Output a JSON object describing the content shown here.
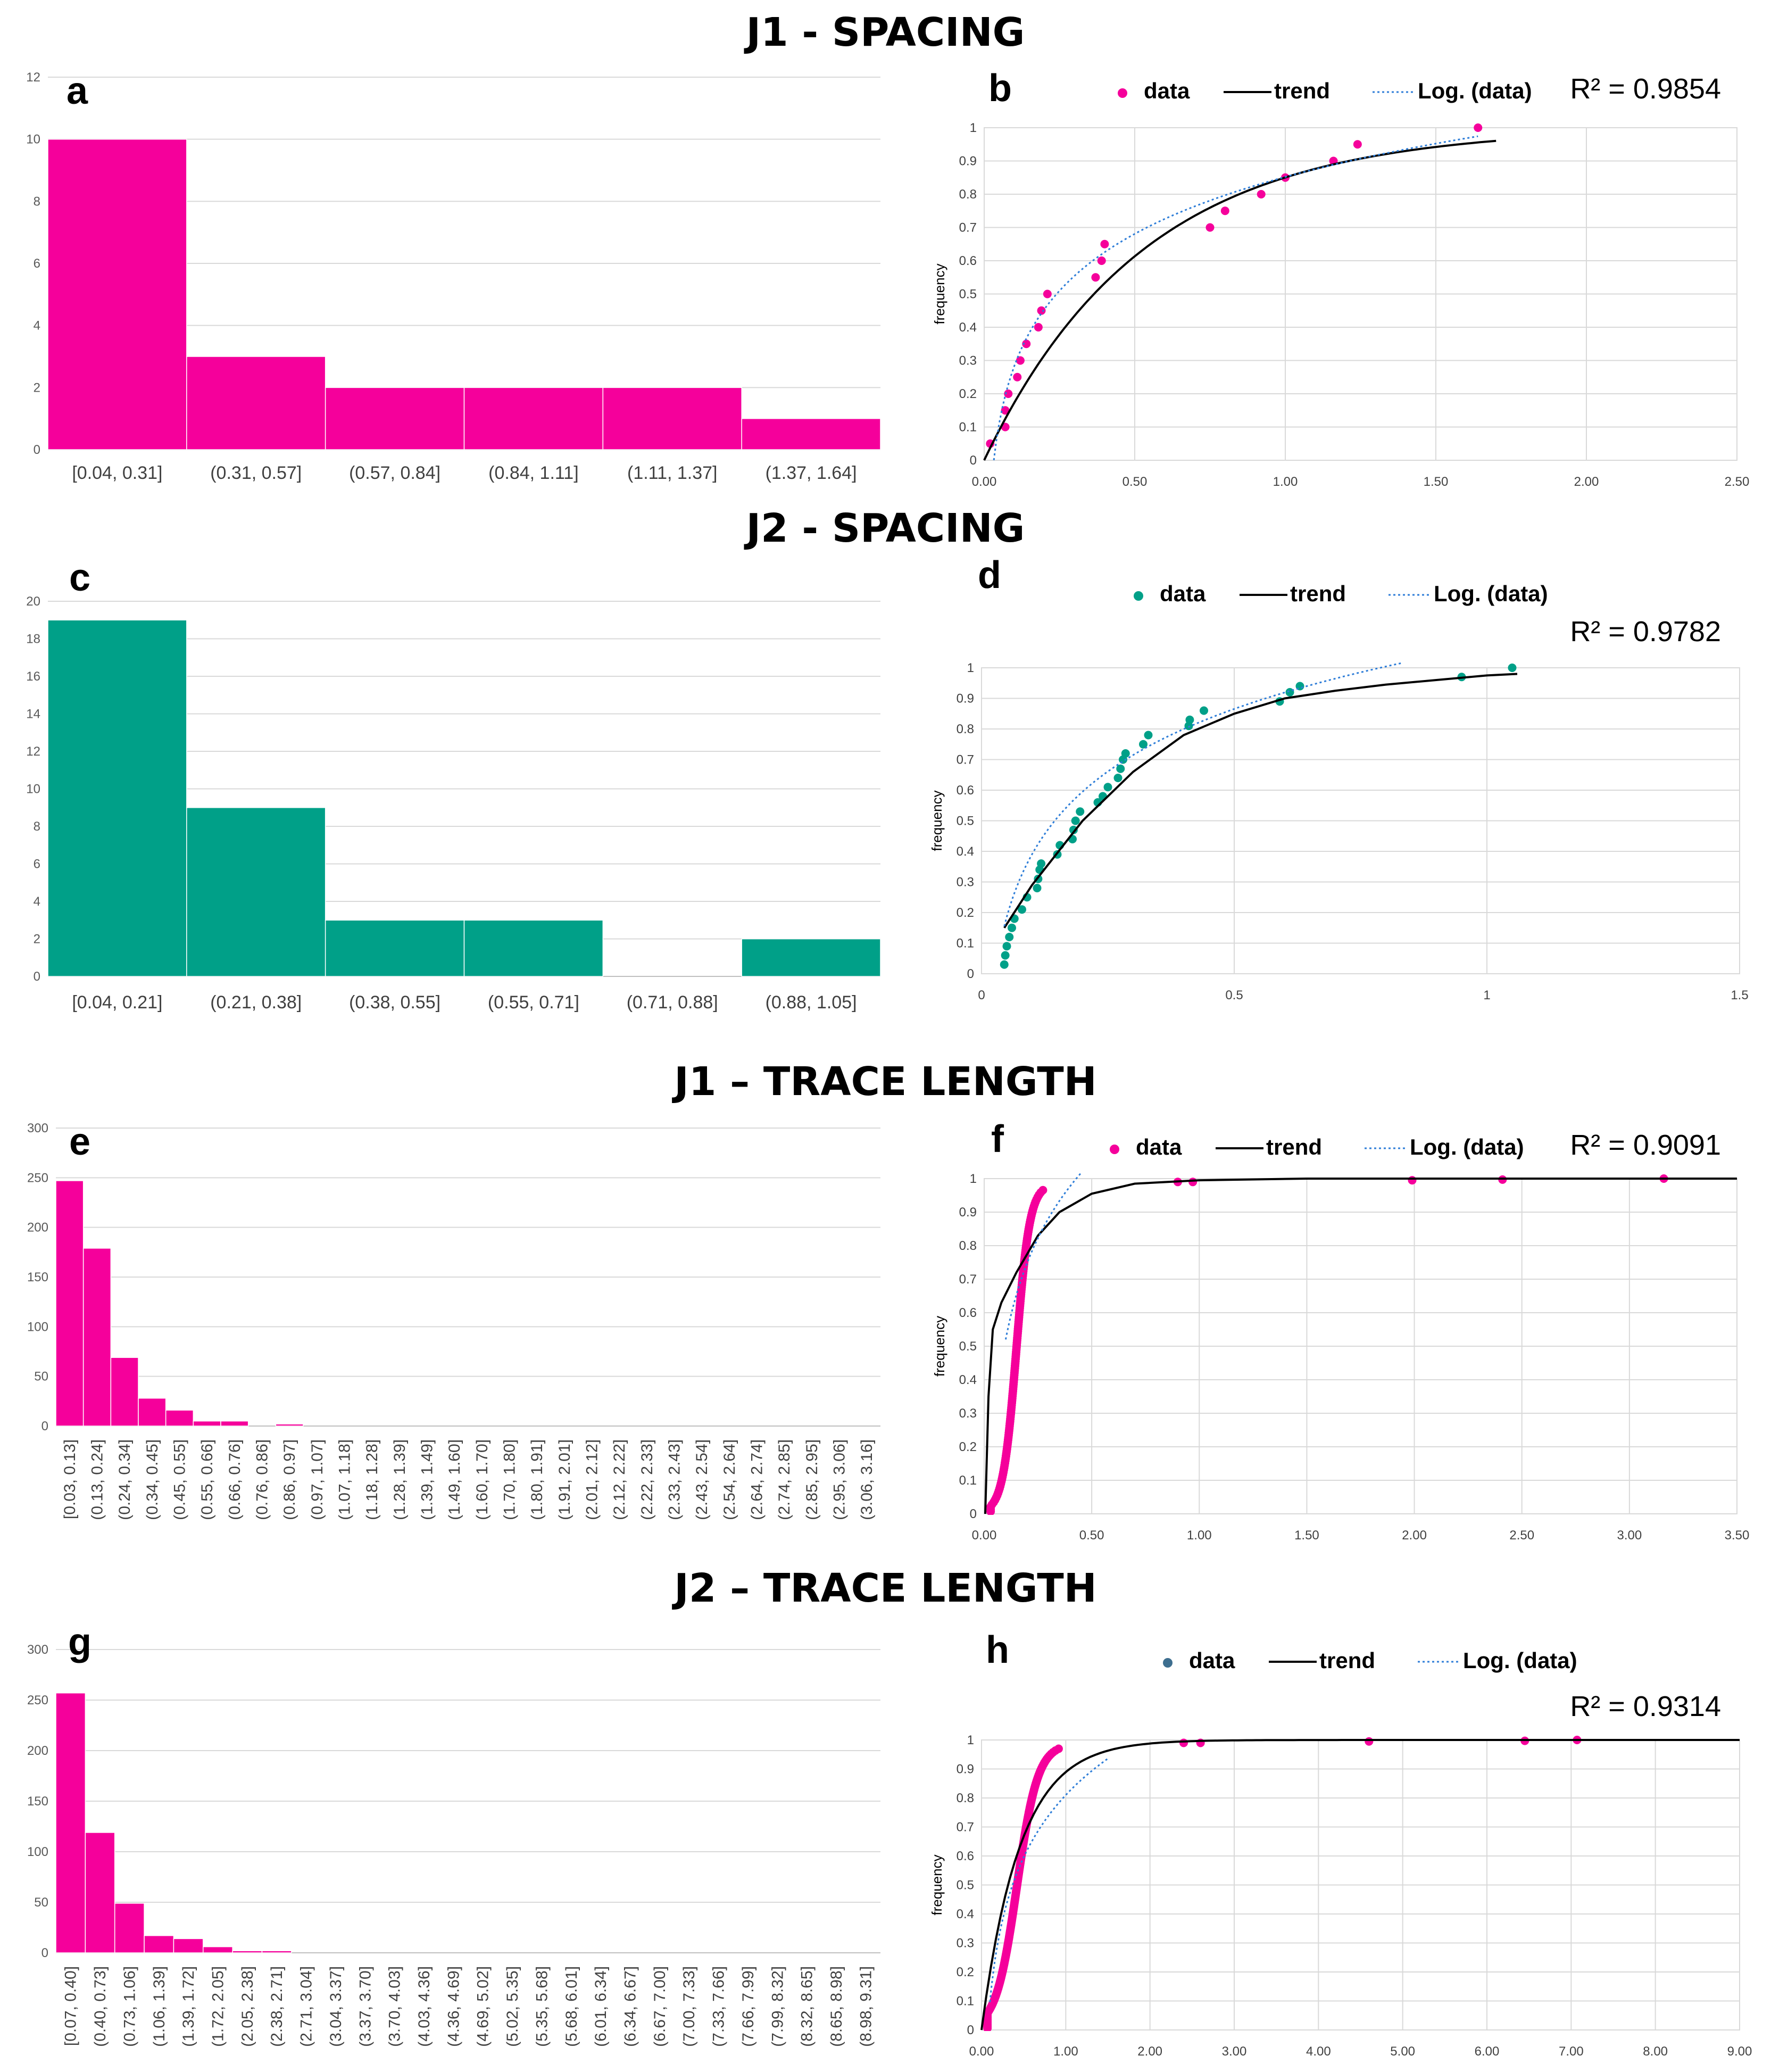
{
  "sections": [
    {
      "title": "J1 - SPACING"
    },
    {
      "title": "J2 - SPACING"
    },
    {
      "title": "J1 – TRACE LENGTH"
    },
    {
      "title": "J2 – TRACE LENGTH"
    }
  ],
  "colors": {
    "magenta": "#f5009b",
    "teal": "#00a088",
    "steel": "#3d6e8f",
    "trend": "#000000",
    "log": "#2f7ed8",
    "grid": "#d9d9d9",
    "axis_text": "#595959"
  },
  "chart_data": [
    {
      "id": "a",
      "panel_letter": "a",
      "type": "bar",
      "title": "J1 - SPACING",
      "color": "#f5009b",
      "ylim": [
        0,
        12
      ],
      "yticks": [
        0,
        2,
        4,
        6,
        8,
        10,
        12
      ],
      "categories": [
        "[0.04, 0.31]",
        "(0.31, 0.57]",
        "(0.57, 0.84]",
        "(0.84, 1.11]",
        "(1.11, 1.37]",
        "(1.37, 1.64]"
      ],
      "values": [
        10,
        3,
        2,
        2,
        2,
        1
      ],
      "rotate_labels": false
    },
    {
      "id": "b",
      "panel_letter": "b",
      "type": "scatter",
      "title": "J1 - SPACING",
      "ylabel": "frequency",
      "xlim": [
        0,
        2.5
      ],
      "ylim": [
        0,
        1
      ],
      "xticks": [
        0,
        0.5,
        1,
        1.5,
        2,
        2.5
      ],
      "xtick_labels": [
        "0.00",
        "0.50",
        "1.00",
        "1.50",
        "2.00",
        "2.50"
      ],
      "yticks": [
        0,
        0.1,
        0.2,
        0.3,
        0.4,
        0.5,
        0.6,
        0.7,
        0.8,
        0.9,
        1
      ],
      "ytick_labels": [
        "0",
        "0.1",
        "0.2",
        "0.3",
        "0.4",
        "0.5",
        "0.6",
        "0.7",
        "0.8",
        "0.9",
        "1"
      ],
      "r2": "R² = 0.9854",
      "legend": [
        "data",
        "trend",
        "Log. (data)"
      ],
      "point_color": "#f5009b",
      "series": [
        {
          "name": "data",
          "points": [
            [
              0.02,
              0.05
            ],
            [
              0.07,
              0.1
            ],
            [
              0.07,
              0.15
            ],
            [
              0.08,
              0.2
            ],
            [
              0.11,
              0.25
            ],
            [
              0.12,
              0.3
            ],
            [
              0.14,
              0.35
            ],
            [
              0.18,
              0.4
            ],
            [
              0.19,
              0.45
            ],
            [
              0.21,
              0.5
            ],
            [
              0.37,
              0.55
            ],
            [
              0.39,
              0.6
            ],
            [
              0.4,
              0.65
            ],
            [
              0.75,
              0.7
            ],
            [
              0.8,
              0.75
            ],
            [
              0.92,
              0.8
            ],
            [
              1.0,
              0.85
            ],
            [
              1.16,
              0.9
            ],
            [
              1.24,
              0.95
            ],
            [
              1.64,
              1.0
            ]
          ]
        },
        {
          "name": "trend",
          "model": "exp",
          "k": 1.9,
          "a": 0,
          "x_range": [
            0,
            1.7
          ]
        },
        {
          "name": "Log. (data)",
          "model": "log",
          "a": 0.852,
          "b": 0.247,
          "x_range": [
            0.03,
            1.64
          ]
        }
      ]
    },
    {
      "id": "c",
      "panel_letter": "c",
      "type": "bar",
      "title": "J2 - SPACING",
      "color": "#00a088",
      "ylim": [
        0,
        20
      ],
      "yticks": [
        0,
        2,
        4,
        6,
        8,
        10,
        12,
        14,
        16,
        18,
        20
      ],
      "categories": [
        "[0.04, 0.21]",
        "(0.21, 0.38]",
        "(0.38, 0.55]",
        "(0.55, 0.71]",
        "(0.71, 0.88]",
        "(0.88, 1.05]"
      ],
      "values": [
        19,
        9,
        3,
        3,
        0,
        2
      ],
      "rotate_labels": false
    },
    {
      "id": "d",
      "panel_letter": "d",
      "type": "scatter",
      "title": "J2 - SPACING",
      "ylabel": "frequency",
      "xlim": [
        0,
        1.5
      ],
      "ylim": [
        0,
        1
      ],
      "xticks": [
        0,
        0.5,
        1,
        1.5
      ],
      "xtick_labels": [
        "0",
        "0.5",
        "1",
        "1.5"
      ],
      "yticks": [
        0,
        0.1,
        0.2,
        0.3,
        0.4,
        0.5,
        0.6,
        0.7,
        0.8,
        0.9,
        1
      ],
      "ytick_labels": [
        "0",
        "0.1",
        "0.2",
        "0.3",
        "0.4",
        "0.5",
        "0.6",
        "0.7",
        "0.8",
        "0.9",
        "1"
      ],
      "r2": "R² = 0.9782",
      "legend": [
        "data",
        "trend",
        "Log. (data)"
      ],
      "point_color": "#00a088",
      "series": [
        {
          "name": "data",
          "points": [
            [
              0.045,
              0.03
            ],
            [
              0.047,
              0.06
            ],
            [
              0.05,
              0.09
            ],
            [
              0.055,
              0.12
            ],
            [
              0.06,
              0.15
            ],
            [
              0.065,
              0.18
            ],
            [
              0.08,
              0.21
            ],
            [
              0.09,
              0.25
            ],
            [
              0.11,
              0.28
            ],
            [
              0.112,
              0.31
            ],
            [
              0.115,
              0.34
            ],
            [
              0.118,
              0.36
            ],
            [
              0.15,
              0.39
            ],
            [
              0.155,
              0.42
            ],
            [
              0.18,
              0.44
            ],
            [
              0.182,
              0.47
            ],
            [
              0.186,
              0.5
            ],
            [
              0.195,
              0.53
            ],
            [
              0.23,
              0.56
            ],
            [
              0.24,
              0.58
            ],
            [
              0.25,
              0.61
            ],
            [
              0.27,
              0.64
            ],
            [
              0.275,
              0.67
            ],
            [
              0.28,
              0.7
            ],
            [
              0.285,
              0.72
            ],
            [
              0.32,
              0.75
            ],
            [
              0.33,
              0.78
            ],
            [
              0.41,
              0.81
            ],
            [
              0.412,
              0.83
            ],
            [
              0.44,
              0.86
            ],
            [
              0.59,
              0.89
            ],
            [
              0.61,
              0.92
            ],
            [
              0.63,
              0.94
            ],
            [
              0.95,
              0.97
            ],
            [
              1.05,
              1.0
            ]
          ]
        },
        {
          "name": "trend",
          "model": "poly",
          "x_range": [
            0.045,
            1.06
          ],
          "curve": [
            [
              0.045,
              0.15
            ],
            [
              0.1,
              0.29
            ],
            [
              0.2,
              0.5
            ],
            [
              0.3,
              0.66
            ],
            [
              0.4,
              0.78
            ],
            [
              0.5,
              0.85
            ],
            [
              0.6,
              0.9
            ],
            [
              0.7,
              0.925
            ],
            [
              0.8,
              0.945
            ],
            [
              0.9,
              0.96
            ],
            [
              1.0,
              0.975
            ],
            [
              1.06,
              0.98
            ]
          ]
        },
        {
          "name": "Log. (data)",
          "model": "log",
          "a": 1.07,
          "b": 0.295,
          "x_range": [
            0.045,
            0.83
          ]
        }
      ]
    },
    {
      "id": "e",
      "panel_letter": "e",
      "type": "bar",
      "title": "J1 – TRACE LENGTH",
      "color": "#f5009b",
      "ylim": [
        0,
        300
      ],
      "yticks": [
        0,
        50,
        100,
        150,
        200,
        250,
        300
      ],
      "categories": [
        "[0.03, 0.13]",
        "(0.13, 0.24]",
        "(0.24, 0.34]",
        "(0.34, 0.45]",
        "(0.45, 0.55]",
        "(0.55, 0.66]",
        "(0.66, 0.76]",
        "(0.76, 0.86]",
        "(0.86, 0.97]",
        "(0.97, 1.07]",
        "(1.07, 1.18]",
        "(1.18, 1.28]",
        "(1.28, 1.39]",
        "(1.39, 1.49]",
        "(1.49, 1.60]",
        "(1.60, 1.70]",
        "(1.70, 1.80]",
        "(1.80, 1.91]",
        "(1.91, 2.01]",
        "(2.01, 2.12]",
        "(2.12, 2.22]",
        "(2.22, 2.33]",
        "(2.33, 2.43]",
        "(2.43, 2.54]",
        "(2.54, 2.64]",
        "(2.64, 2.74]",
        "(2.74, 2.85]",
        "(2.85, 2.95]",
        "(2.95, 3.06]",
        "(3.06, 3.16]"
      ],
      "values": [
        247,
        179,
        69,
        28,
        16,
        5,
        5,
        0,
        2,
        0,
        0,
        0,
        0,
        0,
        0,
        0,
        0,
        0,
        0,
        0,
        0,
        0,
        0,
        0,
        0,
        0,
        0,
        0,
        0,
        0
      ],
      "rotate_labels": true
    },
    {
      "id": "f",
      "panel_letter": "f",
      "type": "scatter",
      "title": "J1 – TRACE LENGTH",
      "ylabel": "frequency",
      "xlim": [
        0,
        3.5
      ],
      "ylim": [
        0,
        1
      ],
      "xticks": [
        0,
        0.5,
        1,
        1.5,
        2,
        2.5,
        3,
        3.5
      ],
      "xtick_labels": [
        "0.00",
        "0.50",
        "1.00",
        "1.50",
        "2.00",
        "2.50",
        "3.00",
        "3.50"
      ],
      "yticks": [
        0,
        0.1,
        0.2,
        0.3,
        0.4,
        0.5,
        0.6,
        0.7,
        0.8,
        0.9,
        1
      ],
      "ytick_labels": [
        "0",
        "0.1",
        "0.2",
        "0.3",
        "0.4",
        "0.5",
        "0.6",
        "0.7",
        "0.8",
        "0.9",
        "1"
      ],
      "r2": "R² = 0.9091",
      "legend": [
        "data",
        "trend",
        "Log. (data)"
      ],
      "point_color": "#f5009b",
      "series": [
        {
          "name": "data",
          "model": "cdf",
          "x_min": 0.03,
          "x_max": 0.75,
          "count": 140,
          "x_mid": 0.15,
          "spread": 0.05,
          "extra": [
            [
              0.9,
              0.99
            ],
            [
              0.97,
              0.99
            ],
            [
              1.99,
              0.995
            ],
            [
              2.41,
              0.997
            ],
            [
              3.16,
              1.0
            ]
          ]
        },
        {
          "name": "trend",
          "model": "sat",
          "x_range": [
            0.005,
            3.5
          ],
          "curve": [
            [
              0.005,
              0.0
            ],
            [
              0.02,
              0.35
            ],
            [
              0.04,
              0.55
            ],
            [
              0.08,
              0.63
            ],
            [
              0.15,
              0.72
            ],
            [
              0.25,
              0.83
            ],
            [
              0.35,
              0.9
            ],
            [
              0.5,
              0.955
            ],
            [
              0.7,
              0.985
            ],
            [
              1.0,
              0.995
            ],
            [
              1.5,
              1.0
            ],
            [
              3.5,
              1.0
            ]
          ]
        },
        {
          "name": "Log. (data)",
          "model": "log",
          "a": 1.28,
          "b": 0.33,
          "x_range": [
            0.1,
            0.48
          ]
        }
      ]
    },
    {
      "id": "g",
      "panel_letter": "g",
      "type": "bar",
      "title": "J2 – TRACE LENGTH",
      "color": "#f5009b",
      "ylim": [
        0,
        300
      ],
      "yticks": [
        0,
        50,
        100,
        150,
        200,
        250,
        300
      ],
      "categories": [
        "[0.07, 0.40]",
        "(0.40, 0.73]",
        "(0.73, 1.06]",
        "(1.06, 1.39]",
        "(1.39, 1.72]",
        "(1.72, 2.05]",
        "(2.05, 2.38]",
        "(2.38, 2.71]",
        "(2.71, 3.04]",
        "(3.04, 3.37]",
        "(3.37, 3.70]",
        "(3.70, 4.03]",
        "(4.03, 4.36]",
        "(4.36, 4.69]",
        "(4.69, 5.02]",
        "(5.02, 5.35]",
        "(5.35, 5.68]",
        "(5.68, 6.01]",
        "(6.01, 6.34]",
        "(6.34, 6.67]",
        "(6.67, 7.00]",
        "(7.00, 7.33]",
        "(7.33, 7.66]",
        "(7.66, 7.99]",
        "(7.99, 8.32]",
        "(8.32, 8.65]",
        "(8.65, 8.98]",
        "(8.98, 9.31]"
      ],
      "values": [
        257,
        119,
        49,
        17,
        14,
        6,
        2,
        2,
        0,
        0,
        0,
        0,
        0,
        0,
        0,
        0,
        0,
        0,
        0,
        0,
        0,
        0,
        0,
        0,
        0,
        0,
        0,
        0
      ],
      "rotate_labels": true
    },
    {
      "id": "h",
      "panel_letter": "h",
      "type": "scatter",
      "title": "J2 – TRACE LENGTH",
      "ylabel": "frequency",
      "xlim": [
        0,
        9
      ],
      "ylim": [
        0,
        1
      ],
      "xticks": [
        0,
        1,
        2,
        3,
        4,
        5,
        6,
        7,
        8,
        9
      ],
      "xtick_labels": [
        "0.00",
        "1.00",
        "2.00",
        "3.00",
        "4.00",
        "5.00",
        "6.00",
        "7.00",
        "8.00",
        "9.00"
      ],
      "yticks": [
        0,
        0.1,
        0.2,
        0.3,
        0.4,
        0.5,
        0.6,
        0.7,
        0.8,
        0.9,
        1
      ],
      "ytick_labels": [
        "0",
        "0.1",
        "0.2",
        "0.3",
        "0.4",
        "0.5",
        "0.6",
        "0.7",
        "0.8",
        "0.9",
        "1"
      ],
      "r2": "R² = 0.9314",
      "legend": [
        "data",
        "trend",
        "Log. (data)"
      ],
      "point_color": "#f5009b",
      "legend_color": "#3d6e8f",
      "series": [
        {
          "name": "data",
          "model": "cdf",
          "x_min": 0.07,
          "x_max": 2.2,
          "count": 160,
          "x_mid": 0.42,
          "spread": 0.2,
          "extra": [
            [
              2.4,
              0.99
            ],
            [
              2.6,
              0.99
            ],
            [
              4.6,
              0.995
            ],
            [
              6.45,
              0.997
            ],
            [
              7.07,
              1.0
            ]
          ]
        },
        {
          "name": "trend",
          "model": "exp",
          "k": 2.2,
          "a": 0,
          "x_range": [
            0,
            9
          ]
        },
        {
          "name": "Log. (data)",
          "model": "log",
          "a": 0.81,
          "b": 0.31,
          "x_range": [
            0.1,
            1.5
          ]
        }
      ]
    }
  ]
}
